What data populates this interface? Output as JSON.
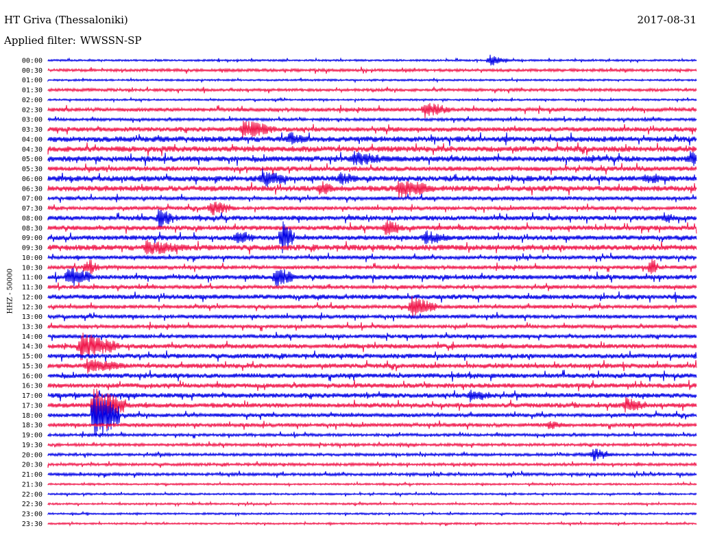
{
  "header": {
    "station": "HT Griva (Thessaloniki)",
    "date": "2017-08-31",
    "filter_label": "Applied filter:",
    "filter_value": "WWSSN-SP"
  },
  "channel_label": "HHZ - 50000",
  "colors": {
    "blue": "#0000e6",
    "red": "#f0164a"
  },
  "chart_data": {
    "type": "line",
    "title": "HT Griva (Thessaloniki)",
    "subtitle": "Applied filter: WWSSN-SP",
    "ylabel": "HHZ - 50000",
    "row_labels": [
      "00:00",
      "00:30",
      "01:00",
      "01:30",
      "02:00",
      "02:30",
      "03:00",
      "03:30",
      "04:00",
      "04:30",
      "05:00",
      "05:30",
      "06:00",
      "06:30",
      "07:00",
      "07:30",
      "08:00",
      "08:30",
      "09:00",
      "09:30",
      "10:00",
      "10:30",
      "11:00",
      "11:30",
      "12:00",
      "12:30",
      "13:00",
      "13:30",
      "14:00",
      "14:30",
      "15:00",
      "15:30",
      "16:00",
      "16:30",
      "17:00",
      "17:30",
      "18:00",
      "18:30",
      "19:00",
      "19:30",
      "20:00",
      "20:30",
      "21:00",
      "21:30",
      "22:00",
      "22:30",
      "23:00",
      "23:30"
    ],
    "row_colors": [
      "blue",
      "red"
    ],
    "noise_levels": [
      1,
      1.5,
      1,
      1.5,
      1,
      2,
      1.5,
      2.5,
      3,
      3,
      3,
      2.5,
      3,
      3,
      2,
      2,
      2.5,
      2.5,
      2.5,
      3,
      2,
      2,
      2.5,
      2,
      2.5,
      2,
      2,
      2,
      2,
      2.5,
      2.5,
      2.5,
      2.5,
      2.5,
      2.5,
      2.5,
      2,
      2,
      1.5,
      1.5,
      1.5,
      1.5,
      1.5,
      1,
      1,
      1,
      1,
      1
    ],
    "events": [
      {
        "row": 0,
        "x": 0.68,
        "amp": 6,
        "len": 0.03
      },
      {
        "row": 5,
        "x": 0.58,
        "amp": 9,
        "len": 0.04
      },
      {
        "row": 7,
        "x": 0.3,
        "amp": 10,
        "len": 0.05
      },
      {
        "row": 8,
        "x": 0.37,
        "amp": 8,
        "len": 0.03
      },
      {
        "row": 10,
        "x": 0.47,
        "amp": 8,
        "len": 0.06
      },
      {
        "row": 10,
        "x": 0.99,
        "amp": 9,
        "len": 0.02
      },
      {
        "row": 12,
        "x": 0.33,
        "amp": 10,
        "len": 0.04
      },
      {
        "row": 12,
        "x": 0.45,
        "amp": 8,
        "len": 0.03
      },
      {
        "row": 12,
        "x": 0.92,
        "amp": 7,
        "len": 0.03
      },
      {
        "row": 13,
        "x": 0.42,
        "amp": 9,
        "len": 0.02
      },
      {
        "row": 13,
        "x": 0.54,
        "amp": 10,
        "len": 0.06
      },
      {
        "row": 15,
        "x": 0.25,
        "amp": 8,
        "len": 0.04
      },
      {
        "row": 16,
        "x": 0.17,
        "amp": 10,
        "len": 0.03
      },
      {
        "row": 16,
        "x": 0.95,
        "amp": 7,
        "len": 0.02
      },
      {
        "row": 17,
        "x": 0.52,
        "amp": 9,
        "len": 0.03
      },
      {
        "row": 18,
        "x": 0.29,
        "amp": 9,
        "len": 0.03
      },
      {
        "row": 18,
        "x": 0.36,
        "amp": 18,
        "len": 0.02
      },
      {
        "row": 18,
        "x": 0.58,
        "amp": 8,
        "len": 0.04
      },
      {
        "row": 19,
        "x": 0.15,
        "amp": 8,
        "len": 0.07
      },
      {
        "row": 21,
        "x": 0.06,
        "amp": 10,
        "len": 0.02
      },
      {
        "row": 21,
        "x": 0.93,
        "amp": 14,
        "len": 0.01
      },
      {
        "row": 22,
        "x": 0.03,
        "amp": 12,
        "len": 0.04
      },
      {
        "row": 22,
        "x": 0.35,
        "amp": 12,
        "len": 0.03
      },
      {
        "row": 25,
        "x": 0.56,
        "amp": 12,
        "len": 0.04
      },
      {
        "row": 29,
        "x": 0.05,
        "amp": 14,
        "len": 0.06
      },
      {
        "row": 31,
        "x": 0.06,
        "amp": 8,
        "len": 0.06
      },
      {
        "row": 34,
        "x": 0.65,
        "amp": 7,
        "len": 0.04
      },
      {
        "row": 35,
        "x": 0.07,
        "amp": 20,
        "len": 0.05
      },
      {
        "row": 35,
        "x": 0.89,
        "amp": 9,
        "len": 0.03
      },
      {
        "row": 36,
        "x": 0.07,
        "amp": 30,
        "len": 0.04
      },
      {
        "row": 37,
        "x": 0.77,
        "amp": 5,
        "len": 0.03
      },
      {
        "row": 40,
        "x": 0.84,
        "amp": 7,
        "len": 0.03
      }
    ]
  }
}
